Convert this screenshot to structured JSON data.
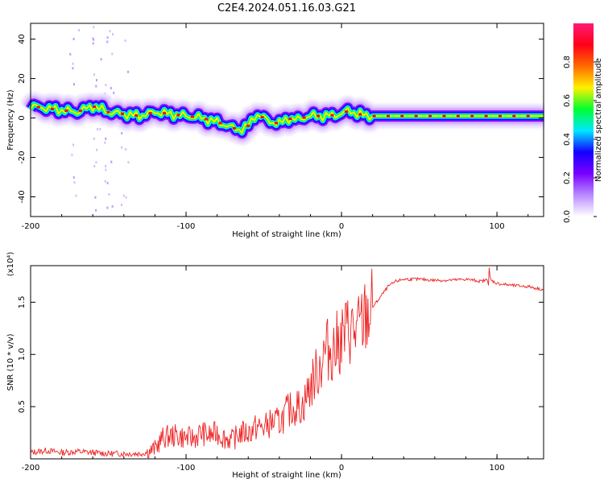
{
  "figure": {
    "title": "C2E4.2024.051.16.03.G21"
  },
  "chart_data": [
    {
      "type": "heatmap",
      "xlabel": "Height of straight line (km)",
      "ylabel": "Frequency (Hz)",
      "xlim": [
        -200,
        130
      ],
      "ylim": [
        -50,
        48
      ],
      "x_ticks": [
        -200,
        -100,
        0,
        100
      ],
      "y_ticks": [
        40,
        20,
        0,
        -20,
        -40
      ],
      "colorbar": {
        "label": "Normalized spectral amplitude",
        "range": [
          0,
          1
        ],
        "ticks": [
          0.0,
          0.2,
          0.4,
          0.6,
          0.8
        ],
        "colormap": [
          "#ffffff",
          "#b98bff",
          "#7a00ff",
          "#1400ff",
          "#00e8ff",
          "#00ff30",
          "#fff000",
          "#ff6a00",
          "#ff0018",
          "#ff1a75"
        ]
      },
      "ridge": {
        "x": [
          -200,
          -190,
          -180,
          -170,
          -160,
          -150,
          -140,
          -130,
          -120,
          -110,
          -100,
          -90,
          -80,
          -70,
          -65,
          -60,
          -55,
          -50,
          -45,
          -40,
          -35,
          -30,
          -20,
          -10,
          0,
          5,
          10,
          20,
          40,
          60,
          80,
          100,
          130
        ],
        "y": [
          6,
          5,
          4,
          3,
          6,
          3,
          2,
          1,
          3,
          2,
          1,
          0,
          -2,
          -5,
          -6,
          -4,
          2,
          0,
          -2,
          -3,
          0,
          -1,
          1,
          1,
          2,
          4,
          2,
          1,
          1,
          1,
          1,
          1,
          1
        ]
      }
    },
    {
      "type": "line",
      "xlabel": "Height of straight line (km)",
      "ylabel": "SNR (10 * v/v)",
      "y_multiplier": "(x10⁴)",
      "xlim": [
        -200,
        130
      ],
      "ylim": [
        0,
        1.85
      ],
      "x_ticks": [
        -200,
        -100,
        0,
        100
      ],
      "y_ticks": [
        0.5,
        1.0,
        1.5
      ],
      "color": "#ee2222",
      "series": [
        {
          "x": [
            -200,
            -190,
            -180,
            -170,
            -160,
            -150,
            -140,
            -130,
            -125,
            -120,
            -115,
            -110,
            -105,
            -100,
            -95,
            -90,
            -85,
            -80,
            -75,
            -70,
            -65,
            -60,
            -55,
            -50,
            -45,
            -40,
            -35,
            -30,
            -25,
            -20,
            -15,
            -10,
            -5,
            0,
            5,
            10,
            15,
            20,
            25,
            30,
            35,
            40,
            50,
            60,
            70,
            80,
            90,
            95,
            100,
            110,
            120,
            130
          ],
          "y": [
            0.06,
            0.08,
            0.06,
            0.07,
            0.06,
            0.05,
            0.05,
            0.05,
            0.06,
            0.1,
            0.2,
            0.22,
            0.22,
            0.2,
            0.2,
            0.25,
            0.22,
            0.25,
            0.2,
            0.18,
            0.25,
            0.25,
            0.3,
            0.3,
            0.35,
            0.35,
            0.45,
            0.5,
            0.5,
            0.7,
            0.85,
            1.05,
            1.05,
            1.15,
            1.25,
            1.2,
            1.35,
            1.45,
            1.55,
            1.65,
            1.7,
            1.72,
            1.72,
            1.71,
            1.71,
            1.72,
            1.7,
            1.72,
            1.68,
            1.66,
            1.65,
            1.62
          ]
        }
      ]
    }
  ]
}
